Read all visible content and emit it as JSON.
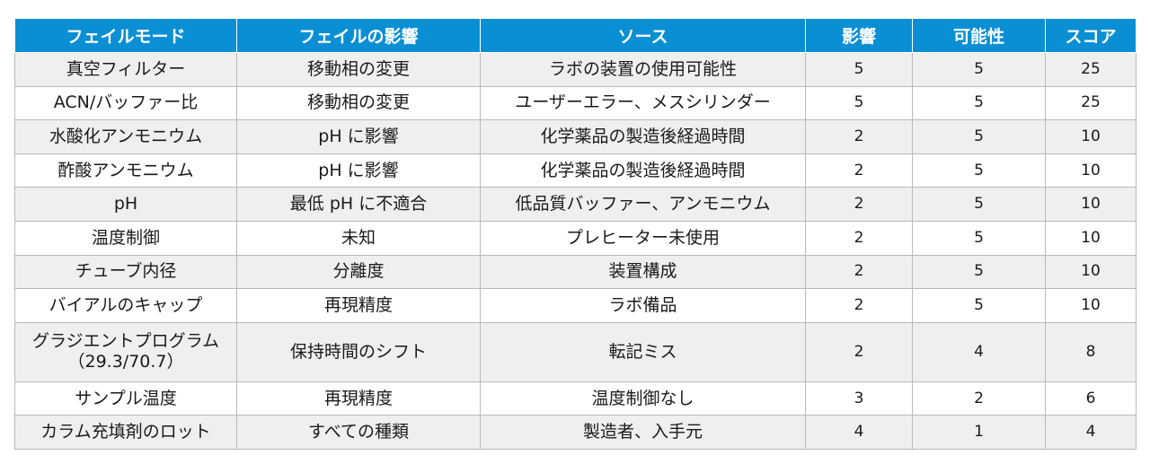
{
  "table": {
    "headers": [
      "フェイルモード",
      "フェイルの影響",
      "ソース",
      "影響",
      "可能性",
      "スコア"
    ],
    "rows": [
      [
        "真空フィルター",
        "移動相の変更",
        "ラボの装置の使用可能性",
        "5",
        "5",
        "25"
      ],
      [
        "ACN/バッファー比",
        "移動相の変更",
        "ユーザーエラー、メスシリンダー",
        "5",
        "5",
        "25"
      ],
      [
        "水酸化アンモニウム",
        "pH に影響",
        "化学薬品の製造後経過時間",
        "2",
        "5",
        "10"
      ],
      [
        "酢酸アンモニウム",
        "pH に影響",
        "化学薬品の製造後経過時間",
        "2",
        "5",
        "10"
      ],
      [
        "pH",
        "最低 pH に不適合",
        "低品質バッファー、アンモニウム",
        "2",
        "5",
        "10"
      ],
      [
        "温度制御",
        "未知",
        "プレヒーター未使用",
        "2",
        "5",
        "10"
      ],
      [
        "チューブ内径",
        "分離度",
        "装置構成",
        "2",
        "5",
        "10"
      ],
      [
        "バイアルのキャップ",
        "再現精度",
        "ラボ備品",
        "2",
        "5",
        "10"
      ],
      [
        "グラジエントプログラム",
        "保持時間のシフト",
        "転記ミス",
        "2",
        "4",
        "8"
      ],
      [
        "サンプル温度",
        "再現精度",
        "温度制御なし",
        "3",
        "2",
        "6"
      ],
      [
        "カラム充填剤のロット",
        "すべての種類",
        "製造者、入手元",
        "4",
        "1",
        "4"
      ]
    ],
    "row8_line2": "（29.3/70.7）"
  },
  "colors": {
    "header_bg": "#0a8fd4",
    "header_text": "#ffffff",
    "row_alt_bg": "#efeff0",
    "border": "#b9b9b9"
  }
}
